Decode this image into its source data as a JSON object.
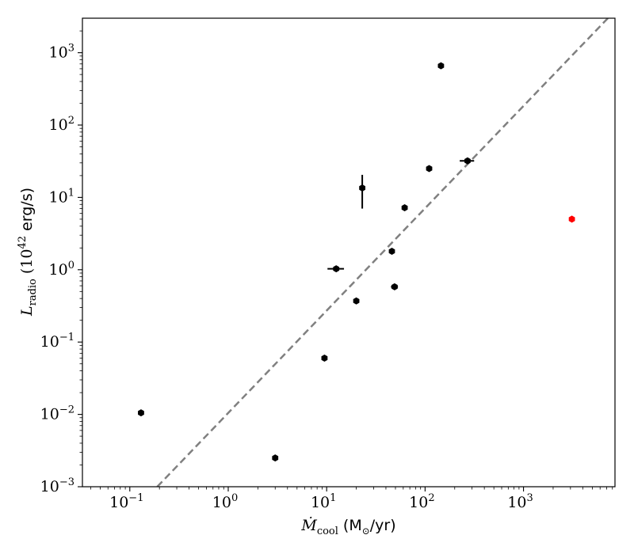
{
  "chart_data": {
    "type": "scatter",
    "x_scale": "log",
    "y_scale": "log",
    "xlim": [
      0.033,
      8500
    ],
    "ylim": [
      0.001,
      3000
    ],
    "grid": false,
    "xlabel": {
      "symbol": "Ṁ",
      "subscript": "cool",
      "unit": "(M",
      "unit_sub": "⊙",
      "unit_end": "/yr)"
    },
    "ylabel": {
      "symbol": "L",
      "subscript": "radio",
      "unit_pre": "(10",
      "unit_exp": "42",
      "unit_end": " erg/s)"
    },
    "x_ticks": [
      {
        "value": 0.1,
        "base": "10",
        "exp": "−1"
      },
      {
        "value": 1,
        "base": "10",
        "exp": "0"
      },
      {
        "value": 10,
        "base": "10",
        "exp": "1"
      },
      {
        "value": 100,
        "base": "10",
        "exp": "2"
      },
      {
        "value": 1000,
        "base": "10",
        "exp": "3"
      }
    ],
    "y_ticks": [
      {
        "value": 0.001,
        "base": "10",
        "exp": "−3"
      },
      {
        "value": 0.01,
        "base": "10",
        "exp": "−2"
      },
      {
        "value": 0.1,
        "base": "10",
        "exp": "−1"
      },
      {
        "value": 1,
        "base": "10",
        "exp": "0"
      },
      {
        "value": 10,
        "base": "10",
        "exp": "1"
      },
      {
        "value": 100,
        "base": "10",
        "exp": "2"
      },
      {
        "value": 1000,
        "base": "10",
        "exp": "3"
      }
    ],
    "points": [
      {
        "x": 0.13,
        "y": 0.0105,
        "color": "#000000"
      },
      {
        "x": 3.0,
        "y": 0.0025,
        "color": "#000000"
      },
      {
        "x": 9.5,
        "y": 0.06,
        "color": "#000000"
      },
      {
        "x": 12.5,
        "y": 1.03,
        "xerr": [
          2.3,
          2.5
        ],
        "color": "#000000"
      },
      {
        "x": 20,
        "y": 0.37,
        "color": "#000000"
      },
      {
        "x": 23,
        "y": 13.5,
        "yerr": [
          6.5,
          7.0
        ],
        "color": "#000000"
      },
      {
        "x": 46,
        "y": 1.8,
        "color": "#000000"
      },
      {
        "x": 49,
        "y": 0.58,
        "xerr": [
          4,
          4
        ],
        "color": "#000000"
      },
      {
        "x": 62,
        "y": 7.2,
        "color": "#000000"
      },
      {
        "x": 110,
        "y": 25,
        "color": "#000000"
      },
      {
        "x": 145,
        "y": 660,
        "color": "#000000"
      },
      {
        "x": 270,
        "y": 32,
        "xerr": [
          45,
          45
        ],
        "color": "#000000"
      },
      {
        "x": 3100,
        "y": 5.0,
        "color": "#ff0000"
      }
    ],
    "trend_line": {
      "style": "dashed",
      "color": "#808080",
      "x": [
        0.19,
        7200
      ],
      "y": [
        0.001,
        3000
      ]
    }
  }
}
